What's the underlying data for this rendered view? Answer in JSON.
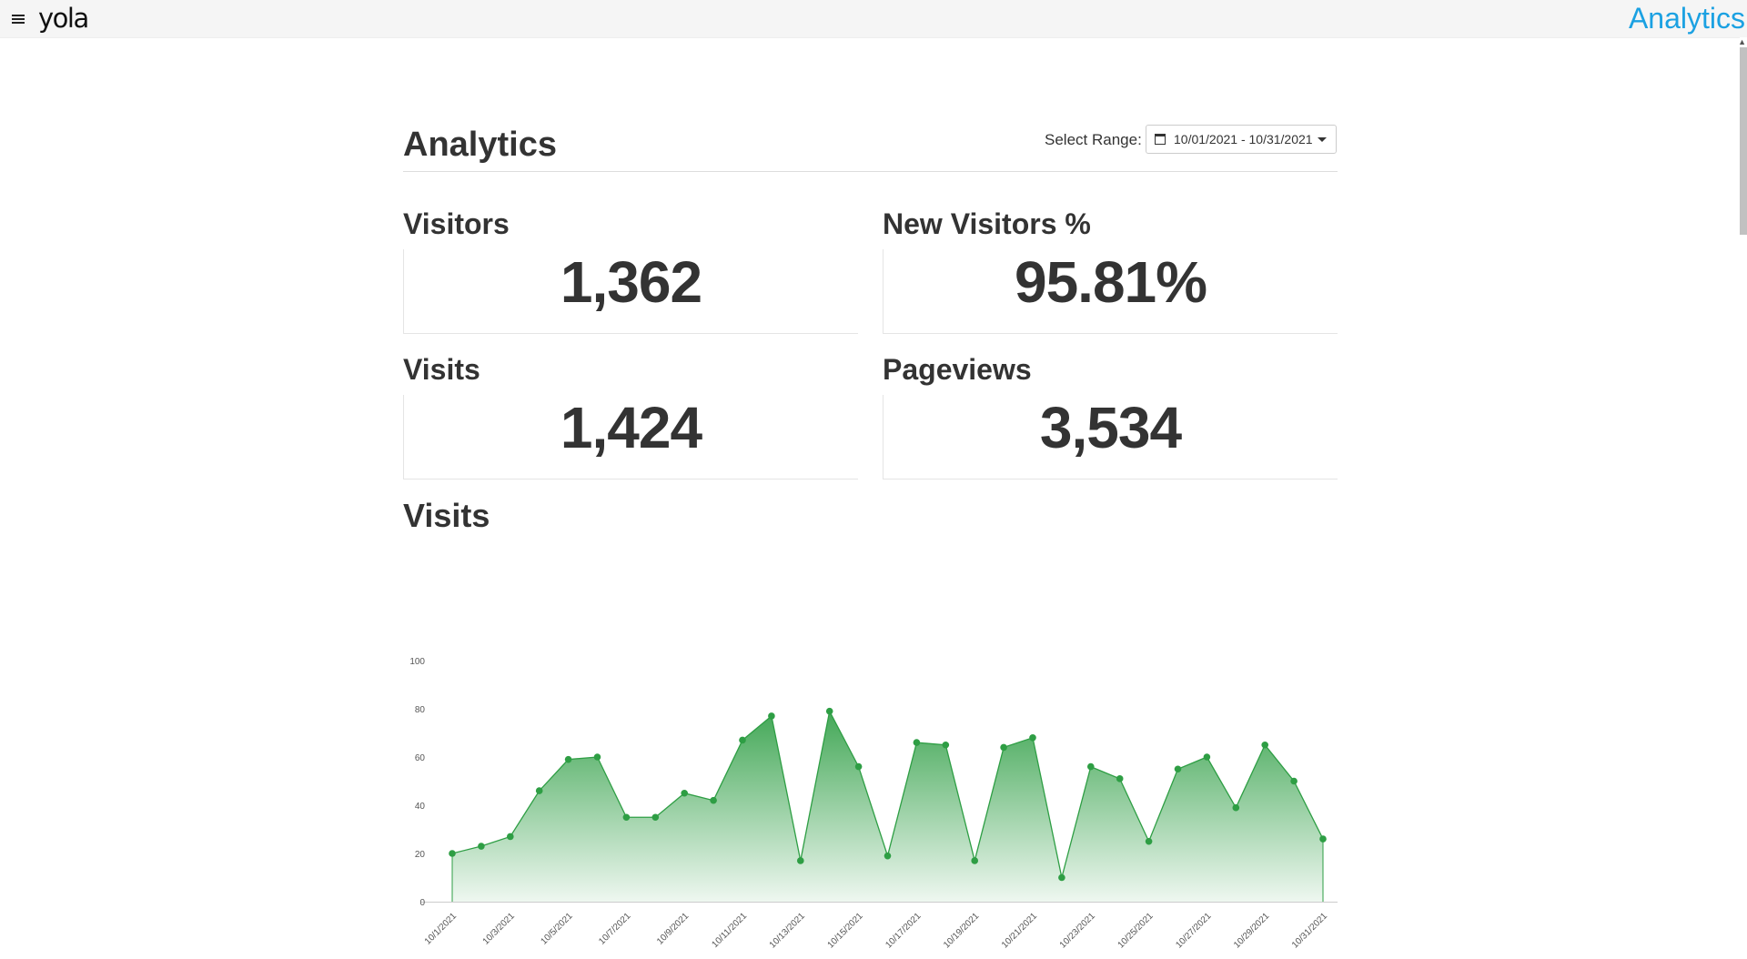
{
  "topbar": {
    "logo": "yola",
    "title": "Analytics",
    "menu_icon": "hamburger-menu-icon"
  },
  "page": {
    "title": "Analytics",
    "range_label": "Select Range:",
    "range_value": "10/01/2021 - 10/31/2021"
  },
  "stats": {
    "visitors": {
      "label": "Visitors",
      "value": "1,362"
    },
    "new_visitors": {
      "label": "New Visitors %",
      "value": "95.81%"
    },
    "visits": {
      "label": "Visits",
      "value": "1,424"
    },
    "pageviews": {
      "label": "Pageviews",
      "value": "3,534"
    }
  },
  "colors": {
    "accent": "#1ba1e2",
    "series": "#2e9e44"
  },
  "chart_title": "Visits",
  "chart_data": {
    "type": "area",
    "title": "Visits",
    "x": [
      "10/1/2021",
      "10/2/2021",
      "10/3/2021",
      "10/4/2021",
      "10/5/2021",
      "10/6/2021",
      "10/7/2021",
      "10/8/2021",
      "10/9/2021",
      "10/10/2021",
      "10/11/2021",
      "10/12/2021",
      "10/13/2021",
      "10/14/2021",
      "10/15/2021",
      "10/16/2021",
      "10/17/2021",
      "10/18/2021",
      "10/19/2021",
      "10/20/2021",
      "10/21/2021",
      "10/22/2021",
      "10/23/2021",
      "10/24/2021",
      "10/25/2021",
      "10/26/2021",
      "10/27/2021",
      "10/28/2021",
      "10/29/2021",
      "10/30/2021",
      "10/31/2021"
    ],
    "tick_labels": [
      "10/1/2021",
      "10/3/2021",
      "10/5/2021",
      "10/7/2021",
      "10/9/2021",
      "10/11/2021",
      "10/13/2021",
      "10/15/2021",
      "10/17/2021",
      "10/19/2021",
      "10/21/2021",
      "10/23/2021",
      "10/25/2021",
      "10/27/2021",
      "10/29/2021",
      "10/31/2021"
    ],
    "values": [
      20,
      23,
      27,
      46,
      59,
      60,
      35,
      35,
      45,
      42,
      67,
      77,
      17,
      79,
      56,
      19,
      66,
      65,
      17,
      64,
      68,
      10,
      56,
      51,
      25,
      55,
      60,
      39,
      65,
      50,
      26
    ],
    "yticks": [
      0,
      20,
      40,
      60,
      80,
      100
    ],
    "ylim": [
      0,
      100
    ],
    "grid": false,
    "legend": "none"
  }
}
